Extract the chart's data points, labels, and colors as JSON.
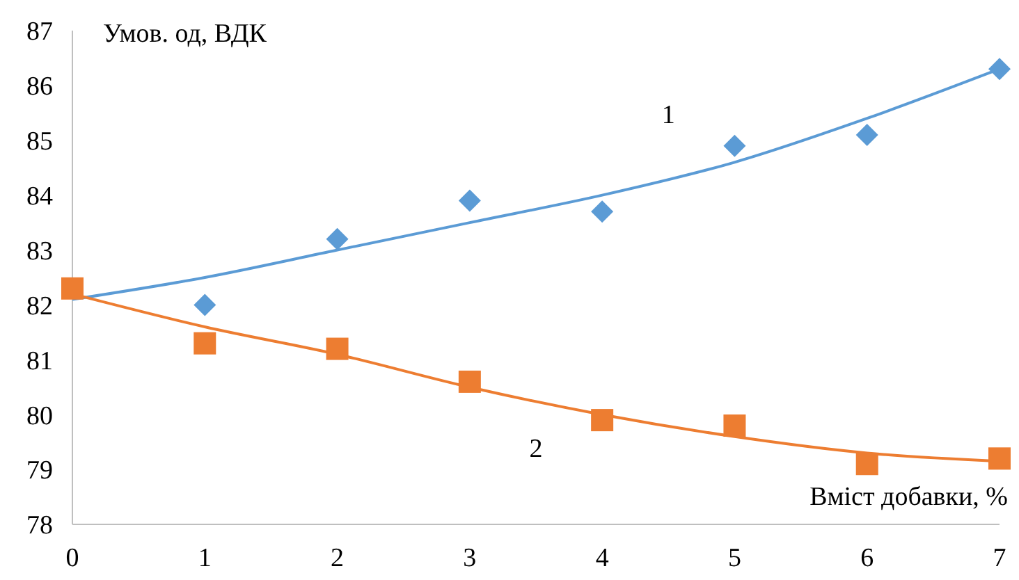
{
  "chart_data": {
    "type": "scatter",
    "xlabel": "Вміст добавки, %",
    "ylabel": "Умов. од, ВДК",
    "x": [
      0,
      1,
      2,
      3,
      4,
      5,
      6,
      7
    ],
    "xlim": [
      0,
      7
    ],
    "xticks": [
      0,
      1,
      2,
      3,
      4,
      5,
      6,
      7
    ],
    "ylim": [
      78,
      87
    ],
    "yticks": [
      78,
      79,
      80,
      81,
      82,
      83,
      84,
      85,
      86,
      87
    ],
    "grid": false,
    "series": [
      {
        "type": "line",
        "color": "#5b9bd5",
        "marker": "none",
        "values": [
          82.1,
          82.5,
          83.0,
          83.5,
          84.0,
          84.6,
          85.4,
          86.3
        ]
      },
      {
        "type": "line",
        "color": "#ed7d31",
        "marker": "none",
        "values": [
          82.2,
          81.6,
          81.1,
          80.5,
          80.0,
          79.6,
          79.3,
          79.15
        ]
      },
      {
        "type": "scatter",
        "color": "#5b9bd5",
        "marker": "diamond",
        "values": [
          null,
          82.0,
          83.2,
          83.9,
          83.7,
          84.9,
          85.1,
          86.3
        ]
      },
      {
        "type": "scatter",
        "color": "#ed7d31",
        "marker": "square",
        "values": [
          82.3,
          81.3,
          81.2,
          80.6,
          79.9,
          79.8,
          79.1,
          79.2
        ]
      }
    ],
    "annotations": [
      "1",
      "2"
    ]
  }
}
